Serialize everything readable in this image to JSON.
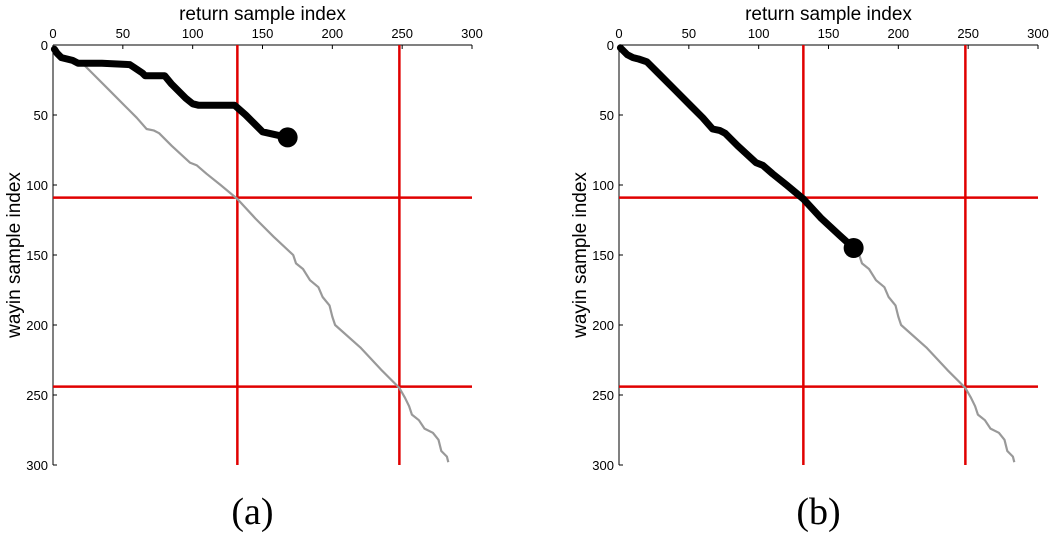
{
  "chart_data": [
    {
      "type": "line",
      "panel_label": "(a)",
      "xlabel": "return sample index",
      "ylabel": "wayin sample index",
      "x_axis_position": "top",
      "y_axis_direction": "down",
      "xlim": [
        0,
        300
      ],
      "ylim": [
        0,
        300
      ],
      "xticks": [
        "0",
        "50",
        "100",
        "150",
        "200",
        "250",
        "300"
      ],
      "yticks": [
        "0",
        "50",
        "100",
        "150",
        "200",
        "250",
        "300"
      ],
      "grid": false,
      "red_vertical_lines_x": [
        132,
        248
      ],
      "red_horizontal_lines_y": [
        109,
        244
      ],
      "colors": {
        "reference_path": "#999999",
        "partial_path": "#000000",
        "boundary_lines": "#e00000"
      },
      "series": [
        {
          "role": "reference-path",
          "points": [
            [
              1,
              2
            ],
            [
              6,
              7
            ],
            [
              10,
              9
            ],
            [
              14,
              10
            ],
            [
              20,
              12
            ],
            [
              28,
              20
            ],
            [
              40,
              32
            ],
            [
              52,
              44
            ],
            [
              60,
              52
            ],
            [
              67,
              60
            ],
            [
              72,
              61
            ],
            [
              76,
              63
            ],
            [
              85,
              72
            ],
            [
              98,
              84
            ],
            [
              103,
              86
            ],
            [
              110,
              92
            ],
            [
              120,
              100
            ],
            [
              132,
              110
            ],
            [
              145,
              124
            ],
            [
              158,
              137
            ],
            [
              172,
              150
            ],
            [
              174,
              156
            ],
            [
              179,
              160
            ],
            [
              184,
              168
            ],
            [
              190,
              173
            ],
            [
              193,
              180
            ],
            [
              198,
              186
            ],
            [
              200,
              194
            ],
            [
              202,
              200
            ],
            [
              220,
              216
            ],
            [
              235,
              232
            ],
            [
              248,
              245
            ],
            [
              252,
              252
            ],
            [
              255,
              258
            ],
            [
              257,
              264
            ],
            [
              262,
              268
            ],
            [
              266,
              274
            ],
            [
              272,
              277
            ],
            [
              276,
              282
            ],
            [
              278,
              290
            ],
            [
              282,
              294
            ],
            [
              283,
              298
            ]
          ]
        },
        {
          "role": "partial-path",
          "end_marker": true,
          "points": [
            [
              1,
              3
            ],
            [
              3,
              6
            ],
            [
              6,
              9
            ],
            [
              10,
              10
            ],
            [
              14,
              11
            ],
            [
              18,
              13
            ],
            [
              35,
              13
            ],
            [
              55,
              14
            ],
            [
              58,
              16
            ],
            [
              64,
              20
            ],
            [
              66,
              22
            ],
            [
              80,
              22
            ],
            [
              85,
              28
            ],
            [
              95,
              38
            ],
            [
              100,
              42
            ],
            [
              104,
              43
            ],
            [
              115,
              43
            ],
            [
              130,
              43
            ],
            [
              138,
              50
            ],
            [
              144,
              56
            ],
            [
              150,
              62
            ],
            [
              168,
              66
            ]
          ]
        }
      ]
    },
    {
      "type": "line",
      "panel_label": "(b)",
      "xlabel": "return sample index",
      "ylabel": "wayin sample index",
      "x_axis_position": "top",
      "y_axis_direction": "down",
      "xlim": [
        0,
        300
      ],
      "ylim": [
        0,
        300
      ],
      "xticks": [
        "0",
        "50",
        "100",
        "150",
        "200",
        "250",
        "300"
      ],
      "yticks": [
        "0",
        "50",
        "100",
        "150",
        "200",
        "250",
        "300"
      ],
      "grid": false,
      "red_vertical_lines_x": [
        132,
        248
      ],
      "red_horizontal_lines_y": [
        109,
        244
      ],
      "colors": {
        "reference_path": "#999999",
        "partial_path": "#000000",
        "boundary_lines": "#e00000"
      },
      "series": [
        {
          "role": "reference-path",
          "points": [
            [
              1,
              2
            ],
            [
              6,
              7
            ],
            [
              10,
              9
            ],
            [
              14,
              10
            ],
            [
              20,
              12
            ],
            [
              28,
              20
            ],
            [
              40,
              32
            ],
            [
              52,
              44
            ],
            [
              60,
              52
            ],
            [
              67,
              60
            ],
            [
              72,
              61
            ],
            [
              76,
              63
            ],
            [
              85,
              72
            ],
            [
              98,
              84
            ],
            [
              103,
              86
            ],
            [
              110,
              92
            ],
            [
              120,
              100
            ],
            [
              132,
              110
            ],
            [
              145,
              124
            ],
            [
              158,
              137
            ],
            [
              172,
              150
            ],
            [
              174,
              156
            ],
            [
              179,
              160
            ],
            [
              184,
              168
            ],
            [
              190,
              173
            ],
            [
              193,
              180
            ],
            [
              198,
              186
            ],
            [
              200,
              194
            ],
            [
              202,
              200
            ],
            [
              220,
              216
            ],
            [
              235,
              232
            ],
            [
              248,
              245
            ],
            [
              252,
              252
            ],
            [
              255,
              258
            ],
            [
              257,
              264
            ],
            [
              262,
              268
            ],
            [
              266,
              274
            ],
            [
              272,
              277
            ],
            [
              276,
              282
            ],
            [
              278,
              290
            ],
            [
              282,
              294
            ],
            [
              283,
              298
            ]
          ]
        },
        {
          "role": "partial-path",
          "end_marker": true,
          "points": [
            [
              1,
              2
            ],
            [
              6,
              7
            ],
            [
              10,
              9
            ],
            [
              14,
              10
            ],
            [
              20,
              12
            ],
            [
              28,
              20
            ],
            [
              40,
              32
            ],
            [
              52,
              44
            ],
            [
              60,
              52
            ],
            [
              67,
              60
            ],
            [
              72,
              61
            ],
            [
              76,
              63
            ],
            [
              85,
              72
            ],
            [
              98,
              84
            ],
            [
              103,
              86
            ],
            [
              110,
              92
            ],
            [
              120,
              100
            ],
            [
              132,
              110
            ],
            [
              145,
              124
            ],
            [
              158,
              136
            ],
            [
              168,
              145
            ]
          ]
        }
      ]
    }
  ]
}
